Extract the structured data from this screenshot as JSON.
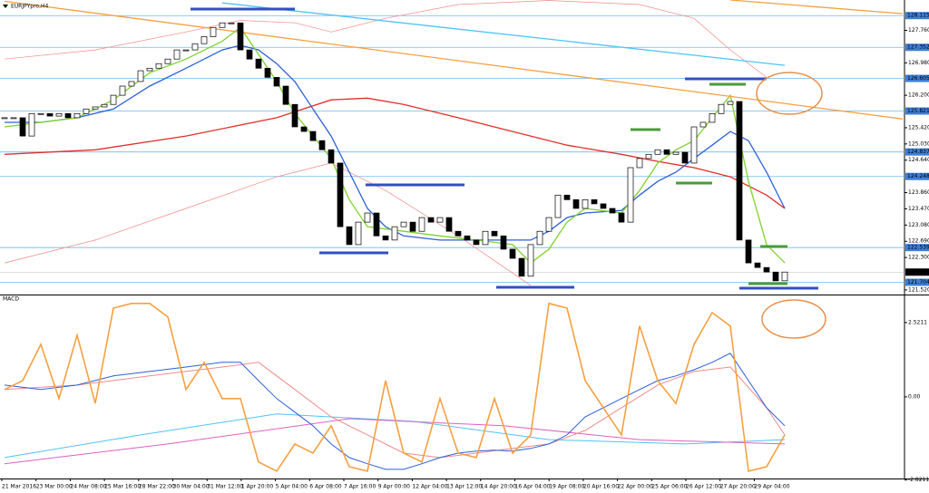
{
  "chart_data": [
    {
      "type": "candlestick",
      "title": "EURJPYpro,H4",
      "xlim": [
        -0.5,
        99.2
      ],
      "ylim": [
        121.41,
        128.49
      ],
      "closes": [
        125.66,
        125.66,
        125.22,
        125.76,
        125.76,
        125.7,
        125.76,
        125.66,
        125.76,
        125.87,
        125.92,
        125.98,
        126.2,
        126.42,
        126.53,
        126.79,
        126.85,
        126.96,
        127.07,
        127.29,
        127.29,
        127.44,
        127.61,
        127.83,
        127.94,
        127.94,
        127.29,
        127.07,
        126.85,
        126.63,
        126.42,
        125.98,
        125.44,
        125.33,
        125.11,
        124.89,
        124.57,
        123.04,
        122.61,
        123.15,
        123.37,
        122.82,
        122.72,
        123.04,
        123.15,
        122.93,
        123.26,
        123.15,
        123.26,
        122.93,
        122.82,
        122.72,
        122.61,
        122.93,
        122.82,
        122.5,
        122.28,
        121.85,
        122.61,
        122.93,
        123.26,
        123.8,
        123.69,
        123.48,
        123.69,
        123.59,
        123.48,
        123.37,
        123.15,
        124.46,
        124.68,
        124.78,
        124.89,
        124.78,
        124.83,
        124.57,
        125.44,
        125.55,
        125.76,
        125.98,
        126.05,
        122.72,
        122.17,
        122.06,
        121.95,
        121.74,
        121.95
      ],
      "up_color": "#ffffff",
      "down_color": "#000000",
      "lines": [
        {
          "color": "#f08a8a",
          "x": [
            0,
            10,
            20,
            26,
            32,
            36,
            42,
            50,
            60,
            70,
            76,
            80,
            84
          ],
          "values": [
            127.07,
            127.29,
            127.72,
            128.0,
            127.94,
            127.72,
            128.05,
            128.38,
            128.48,
            128.38,
            128.05,
            127.29,
            126.63
          ]
        },
        {
          "color": "#f08a8a",
          "x": [
            0,
            10,
            20,
            30,
            36,
            42,
            50,
            58
          ],
          "values": [
            122.17,
            122.72,
            123.48,
            124.24,
            124.57,
            123.91,
            122.82,
            121.63
          ]
        },
        {
          "color": "#e0302a",
          "x": [
            0,
            10,
            20,
            30,
            36,
            40,
            44,
            50,
            56,
            62,
            68,
            72,
            76,
            80,
            84,
            86
          ],
          "values": [
            124.78,
            124.89,
            125.22,
            125.66,
            126.09,
            126.13,
            125.98,
            125.66,
            125.33,
            125.0,
            124.78,
            124.61,
            124.46,
            124.24,
            123.8,
            123.48
          ]
        },
        {
          "color": "#2b5fd9",
          "x": [
            0,
            4,
            8,
            12,
            16,
            20,
            24,
            26,
            28,
            30,
            32,
            34,
            36,
            38,
            40,
            42,
            44,
            48,
            52,
            56,
            58,
            60,
            62,
            64,
            68,
            70,
            72,
            74,
            76,
            78,
            80,
            82,
            84,
            86
          ],
          "values": [
            125.55,
            125.55,
            125.66,
            125.87,
            126.42,
            126.85,
            127.29,
            127.4,
            127.29,
            126.96,
            126.53,
            125.87,
            125.22,
            124.35,
            123.48,
            123.04,
            122.82,
            122.72,
            122.72,
            122.72,
            122.72,
            122.93,
            123.26,
            123.37,
            123.43,
            123.8,
            124.13,
            124.35,
            124.68,
            125.0,
            125.33,
            125.11,
            124.35,
            123.48
          ]
        },
        {
          "color": "#7fd32a",
          "x": [
            0,
            4,
            8,
            12,
            16,
            20,
            24,
            26,
            28,
            30,
            32,
            34,
            36,
            38,
            40,
            44,
            48,
            52,
            56,
            58,
            60,
            62,
            64,
            68,
            70,
            72,
            74,
            76,
            78,
            80,
            82,
            84,
            86
          ],
          "values": [
            125.44,
            125.55,
            125.66,
            126.09,
            126.74,
            127.07,
            127.5,
            127.83,
            127.18,
            126.53,
            125.76,
            125.22,
            124.68,
            123.69,
            123.04,
            122.93,
            122.82,
            122.72,
            122.61,
            122.17,
            122.5,
            123.15,
            123.48,
            123.37,
            123.91,
            124.57,
            124.89,
            125.11,
            125.66,
            126.2,
            124.13,
            122.61,
            122.17
          ]
        },
        {
          "color": "#f5a040",
          "x": [
            0,
            99
          ],
          "values": [
            128.46,
            125.63
          ]
        },
        {
          "color": "#f5a040",
          "x": [
            80,
            99
          ],
          "values": [
            128.49,
            128.16
          ]
        },
        {
          "color": "#4fc3f7",
          "x": [
            24,
            86
          ],
          "values": [
            128.42,
            126.92
          ]
        }
      ],
      "yticks": [
        {
          "value": 127.76,
          "label": "127.760"
        },
        {
          "value": 126.98,
          "label": "126.980"
        },
        {
          "value": 126.2,
          "label": "126.200"
        },
        {
          "value": 125.42,
          "label": "125.420"
        },
        {
          "value": 125.03,
          "label": "125.030"
        },
        {
          "value": 124.64,
          "label": "124.640"
        },
        {
          "value": 123.86,
          "label": "123.860"
        },
        {
          "value": 123.47,
          "label": "123.470"
        },
        {
          "value": 123.08,
          "label": "123.080"
        },
        {
          "value": 122.69,
          "label": "122.690"
        },
        {
          "value": 122.3,
          "label": "122.300"
        },
        {
          "value": 121.52,
          "label": "121.520"
        }
      ],
      "levels": [
        128.115,
        127.352,
        126.605,
        125.821,
        124.837,
        124.248,
        122.539,
        121.704
      ],
      "level_color": "#6cb8f0",
      "level_label_color": "#3d7fd6",
      "last_price": 121.949,
      "time_labels": [
        "21 Mar 2016",
        "23 Mar 00:00",
        "24 Mar 08:00",
        "25 Mar 16:00",
        "28 Mar 22:00",
        "30 Mar 04:00",
        "31 Mar 12:00",
        "1 Apr 20:00",
        "5 Apr 04:00",
        "6 Apr 08:00",
        "7 Apr 16:00",
        "9 Apr 00:00",
        "12 Apr 04:00",
        "13 Apr 12:00",
        "14 Apr 20:00",
        "16 Apr 04:00",
        "19 Apr 08:00",
        "20 Apr 16:00",
        "22 Apr 00:00",
        "25 Apr 06:00",
        "26 Apr 12:00",
        "27 Apr 20:00",
        "29 Apr 04:00"
      ]
    },
    {
      "type": "line",
      "title": "MACD",
      "xlim": [
        -0.5,
        99.2
      ],
      "ylim": [
        -2.77,
        3.44
      ],
      "yticks": [
        2.5211,
        {
          "value": 0,
          "label": "0.00"
        },
        -2.8211
      ],
      "series": [
        {
          "color": "#4fc3f7",
          "x": [
            0,
            15,
            30,
            45,
            60,
            75,
            86
          ],
          "values": [
            -2.06,
            -1.29,
            -0.58,
            -0.83,
            -1.45,
            -1.6,
            -1.45
          ]
        },
        {
          "color": "#e060c0",
          "x": [
            0,
            18,
            38,
            55,
            70,
            86
          ],
          "values": [
            -2.27,
            -1.6,
            -0.74,
            -0.98,
            -1.45,
            -1.6
          ]
        },
        {
          "color": "#f08a8a",
          "x": [
            0,
            8,
            16,
            24,
            28,
            32,
            36,
            40,
            44,
            48,
            52,
            56,
            60,
            64,
            68,
            72,
            76,
            80,
            84,
            86
          ],
          "values": [
            0.25,
            0.4,
            0.71,
            1.01,
            1.17,
            0.25,
            -0.68,
            -1.29,
            -1.91,
            -2.06,
            -1.91,
            -1.75,
            -1.6,
            -1.14,
            -0.37,
            0.4,
            0.86,
            1.01,
            -0.37,
            -1.29
          ]
        },
        {
          "color": "#2b5fd9",
          "x": [
            0,
            4,
            8,
            12,
            16,
            20,
            24,
            26,
            28,
            30,
            32,
            34,
            36,
            38,
            40,
            42,
            44,
            46,
            48,
            50,
            52,
            54,
            56,
            58,
            60,
            62,
            64,
            66,
            68,
            70,
            72,
            74,
            76,
            78,
            80,
            82,
            84,
            86
          ],
          "values": [
            0.4,
            0.25,
            0.4,
            0.71,
            0.86,
            1.01,
            1.17,
            1.17,
            0.55,
            -0.06,
            -0.52,
            -0.98,
            -1.6,
            -2.06,
            -2.27,
            -2.46,
            -2.46,
            -2.27,
            -2.06,
            -1.91,
            -1.84,
            -1.81,
            -1.84,
            -1.75,
            -1.6,
            -1.29,
            -0.68,
            -0.37,
            -0.06,
            0.25,
            0.55,
            0.71,
            0.92,
            1.17,
            1.48,
            0.55,
            -0.37,
            -0.98
          ]
        },
        {
          "color": "#f5a040",
          "x": [
            0,
            2,
            4,
            6,
            8,
            10,
            12,
            14,
            16,
            18,
            20,
            22,
            24,
            26,
            28,
            30,
            32,
            34,
            36,
            38,
            40,
            42,
            44,
            46,
            48,
            50,
            52,
            54,
            56,
            58,
            60,
            62,
            64,
            66,
            68,
            70,
            72,
            74,
            76,
            78,
            80,
            82,
            84,
            86
          ],
          "values": [
            0.25,
            0.55,
            1.78,
            -0.06,
            2.09,
            -0.22,
            3.01,
            3.17,
            3.17,
            2.71,
            0.25,
            1.17,
            -0.06,
            -0.06,
            -2.21,
            -2.52,
            -1.6,
            -1.91,
            -0.98,
            -2.37,
            -2.52,
            0.55,
            -1.91,
            -2.21,
            -0.06,
            -1.91,
            -2.06,
            -0.06,
            -1.91,
            -1.29,
            3.17,
            3.01,
            0.55,
            -0.37,
            -1.29,
            2.4,
            0.55,
            -0.22,
            1.78,
            2.86,
            2.4,
            -2.52,
            -2.37,
            -1.29
          ]
        }
      ]
    }
  ]
}
